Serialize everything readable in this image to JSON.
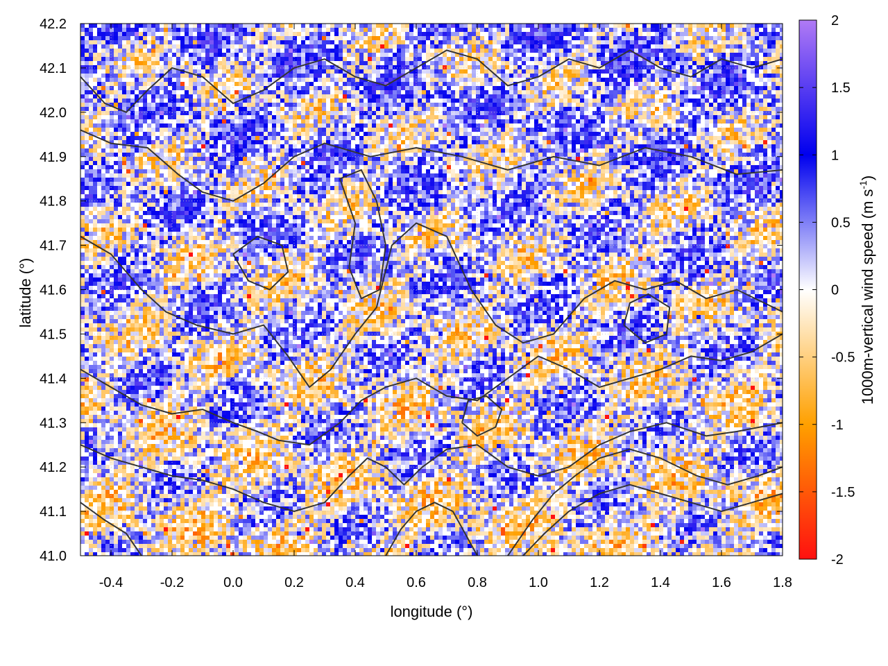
{
  "chart_data": {
    "type": "heatmap",
    "title": "",
    "xlabel": "longitude (°)",
    "ylabel": "latitude (°)",
    "colorbar_label_main": "1000m-vertical wind speed (m s",
    "colorbar_label_sup": "-1",
    "colorbar_label_close": ")",
    "xlim": [
      -0.5,
      1.8
    ],
    "ylim": [
      41.0,
      42.2
    ],
    "x_ticks": [
      -0.4,
      -0.2,
      0.0,
      0.2,
      0.4,
      0.6,
      0.8,
      1.0,
      1.2,
      1.4,
      1.6,
      1.8
    ],
    "x_tick_labels": [
      "-0.4",
      "-0.2",
      "0.0",
      "0.2",
      "0.4",
      "0.6",
      "0.8",
      "1.0",
      "1.2",
      "1.4",
      "1.6",
      "1.8"
    ],
    "y_ticks": [
      41.0,
      41.1,
      41.2,
      41.3,
      41.4,
      41.5,
      41.6,
      41.7,
      41.8,
      41.9,
      42.0,
      42.1,
      42.2
    ],
    "y_tick_labels": [
      "41.0",
      "41.1",
      "41.2",
      "41.3",
      "41.4",
      "41.5",
      "41.6",
      "41.7",
      "41.8",
      "41.9",
      "42.0",
      "42.1",
      "42.2"
    ],
    "color_range": [
      -2,
      2
    ],
    "colorbar_ticks": [
      -2,
      -1.5,
      -1,
      -0.5,
      0,
      0.5,
      1,
      1.5,
      2
    ],
    "colorbar_tick_labels": [
      "-2",
      "-1.5",
      "-1",
      "-0.5",
      "0",
      "0.5",
      "1",
      "1.5",
      "2"
    ],
    "colormap": [
      {
        "value": -2,
        "color": "#ff1010"
      },
      {
        "value": -1,
        "color": "#ffa000"
      },
      {
        "value": 0,
        "color": "#ffffff"
      },
      {
        "value": 1,
        "color": "#0000ee"
      },
      {
        "value": 2,
        "color": "#b07af5"
      }
    ],
    "contour_color": "#333333",
    "grid": true,
    "contours": [
      [
        [
          -0.5,
          41.96
        ],
        [
          -0.4,
          41.93
        ],
        [
          -0.28,
          41.92
        ],
        [
          -0.18,
          41.86
        ],
        [
          -0.1,
          41.82
        ],
        [
          0.0,
          41.8
        ],
        [
          0.1,
          41.84
        ],
        [
          0.2,
          41.9
        ],
        [
          0.3,
          41.93
        ],
        [
          0.45,
          41.9
        ],
        [
          0.6,
          41.92
        ],
        [
          0.75,
          41.9
        ],
        [
          0.9,
          41.87
        ],
        [
          1.05,
          41.9
        ],
        [
          1.2,
          41.88
        ],
        [
          1.35,
          41.92
        ],
        [
          1.5,
          41.9
        ],
        [
          1.65,
          41.86
        ],
        [
          1.8,
          41.87
        ]
      ],
      [
        [
          -0.5,
          41.72
        ],
        [
          -0.4,
          41.68
        ],
        [
          -0.3,
          41.6
        ],
        [
          -0.22,
          41.55
        ],
        [
          -0.12,
          41.52
        ],
        [
          0.0,
          41.5
        ],
        [
          0.1,
          41.52
        ],
        [
          0.18,
          41.45
        ],
        [
          0.25,
          41.38
        ],
        [
          0.32,
          41.42
        ],
        [
          0.4,
          41.5
        ],
        [
          0.47,
          41.56
        ],
        [
          0.52,
          41.7
        ],
        [
          0.6,
          41.75
        ],
        [
          0.7,
          41.72
        ],
        [
          0.78,
          41.6
        ],
        [
          0.86,
          41.52
        ],
        [
          0.95,
          41.48
        ],
        [
          1.05,
          41.5
        ],
        [
          1.15,
          41.58
        ],
        [
          1.25,
          41.62
        ],
        [
          1.35,
          41.6
        ],
        [
          1.45,
          41.62
        ],
        [
          1.55,
          41.58
        ],
        [
          1.65,
          41.6
        ],
        [
          1.8,
          41.55
        ]
      ],
      [
        [
          -0.5,
          41.42
        ],
        [
          -0.4,
          41.38
        ],
        [
          -0.3,
          41.34
        ],
        [
          -0.2,
          41.32
        ],
        [
          -0.1,
          41.33
        ],
        [
          0.0,
          41.3
        ],
        [
          0.08,
          41.28
        ],
        [
          0.15,
          41.26
        ],
        [
          0.25,
          41.25
        ],
        [
          0.35,
          41.3
        ],
        [
          0.42,
          41.35
        ],
        [
          0.5,
          41.38
        ],
        [
          0.6,
          41.4
        ],
        [
          0.7,
          41.36
        ],
        [
          0.8,
          41.35
        ],
        [
          0.9,
          41.4
        ],
        [
          1.0,
          41.45
        ],
        [
          1.1,
          41.42
        ],
        [
          1.2,
          41.38
        ],
        [
          1.3,
          41.4
        ],
        [
          1.4,
          41.42
        ],
        [
          1.5,
          41.45
        ],
        [
          1.6,
          41.44
        ],
        [
          1.7,
          41.46
        ],
        [
          1.8,
          41.5
        ]
      ],
      [
        [
          -0.5,
          41.25
        ],
        [
          -0.4,
          41.22
        ],
        [
          -0.3,
          41.2
        ],
        [
          -0.2,
          41.18
        ],
        [
          -0.1,
          41.17
        ],
        [
          0.0,
          41.15
        ],
        [
          0.1,
          41.12
        ],
        [
          0.2,
          41.1
        ],
        [
          0.3,
          41.12
        ],
        [
          0.38,
          41.18
        ],
        [
          0.44,
          41.22
        ],
        [
          0.5,
          41.2
        ],
        [
          0.56,
          41.16
        ],
        [
          0.62,
          41.2
        ],
        [
          0.7,
          41.24
        ],
        [
          0.8,
          41.25
        ],
        [
          0.9,
          41.2
        ],
        [
          1.0,
          41.18
        ],
        [
          1.1,
          41.2
        ],
        [
          1.2,
          41.25
        ],
        [
          1.3,
          41.28
        ],
        [
          1.42,
          41.3
        ],
        [
          1.55,
          41.27
        ],
        [
          1.65,
          41.28
        ],
        [
          1.8,
          41.3
        ]
      ],
      [
        [
          -0.5,
          41.12
        ],
        [
          -0.42,
          41.08
        ],
        [
          -0.35,
          41.05
        ],
        [
          -0.3,
          41.0
        ]
      ],
      [
        [
          0.5,
          41.0
        ],
        [
          0.55,
          41.06
        ],
        [
          0.6,
          41.1
        ],
        [
          0.66,
          41.12
        ],
        [
          0.72,
          41.1
        ],
        [
          0.76,
          41.05
        ],
        [
          0.8,
          41.0
        ]
      ],
      [
        [
          0.9,
          41.0
        ],
        [
          0.98,
          41.08
        ],
        [
          1.05,
          41.14
        ],
        [
          1.12,
          41.18
        ],
        [
          1.2,
          41.22
        ],
        [
          1.3,
          41.24
        ],
        [
          1.4,
          41.22
        ],
        [
          1.52,
          41.18
        ],
        [
          1.62,
          41.16
        ],
        [
          1.72,
          41.18
        ],
        [
          1.8,
          41.2
        ]
      ],
      [
        [
          0.95,
          41.0
        ],
        [
          1.02,
          41.05
        ],
        [
          1.1,
          41.1
        ],
        [
          1.2,
          41.14
        ],
        [
          1.3,
          41.16
        ],
        [
          1.4,
          41.14
        ],
        [
          1.5,
          41.12
        ],
        [
          1.6,
          41.1
        ],
        [
          1.7,
          41.12
        ],
        [
          1.8,
          41.14
        ]
      ],
      [
        [
          -0.5,
          42.08
        ],
        [
          -0.42,
          42.02
        ],
        [
          -0.35,
          42.0
        ],
        [
          -0.28,
          42.05
        ],
        [
          -0.2,
          42.1
        ],
        [
          -0.1,
          42.08
        ],
        [
          0.0,
          42.02
        ],
        [
          0.1,
          42.05
        ],
        [
          0.2,
          42.1
        ],
        [
          0.3,
          42.12
        ],
        [
          0.4,
          42.08
        ],
        [
          0.5,
          42.06
        ],
        [
          0.6,
          42.1
        ],
        [
          0.7,
          42.14
        ],
        [
          0.8,
          42.12
        ],
        [
          0.9,
          42.06
        ],
        [
          1.0,
          42.08
        ],
        [
          1.1,
          42.12
        ],
        [
          1.2,
          42.1
        ],
        [
          1.3,
          42.14
        ],
        [
          1.4,
          42.1
        ],
        [
          1.5,
          42.08
        ],
        [
          1.6,
          42.12
        ],
        [
          1.7,
          42.1
        ],
        [
          1.8,
          42.12
        ]
      ],
      [
        [
          0.35,
          41.85
        ],
        [
          0.4,
          41.75
        ],
        [
          0.38,
          41.65
        ],
        [
          0.42,
          41.58
        ],
        [
          0.48,
          41.6
        ],
        [
          0.5,
          41.7
        ],
        [
          0.47,
          41.8
        ],
        [
          0.42,
          41.87
        ],
        [
          0.35,
          41.85
        ]
      ],
      [
        [
          0.75,
          41.3
        ],
        [
          0.8,
          41.27
        ],
        [
          0.86,
          41.29
        ],
        [
          0.88,
          41.33
        ],
        [
          0.83,
          41.36
        ],
        [
          0.77,
          41.35
        ],
        [
          0.75,
          41.3
        ]
      ],
      [
        [
          1.28,
          41.52
        ],
        [
          1.35,
          41.48
        ],
        [
          1.42,
          41.5
        ],
        [
          1.43,
          41.56
        ],
        [
          1.36,
          41.59
        ],
        [
          1.3,
          41.57
        ],
        [
          1.28,
          41.52
        ]
      ],
      [
        [
          0.0,
          41.68
        ],
        [
          0.05,
          41.62
        ],
        [
          0.12,
          41.6
        ],
        [
          0.18,
          41.64
        ],
        [
          0.16,
          41.7
        ],
        [
          0.08,
          41.72
        ],
        [
          0.0,
          41.68
        ]
      ]
    ]
  }
}
